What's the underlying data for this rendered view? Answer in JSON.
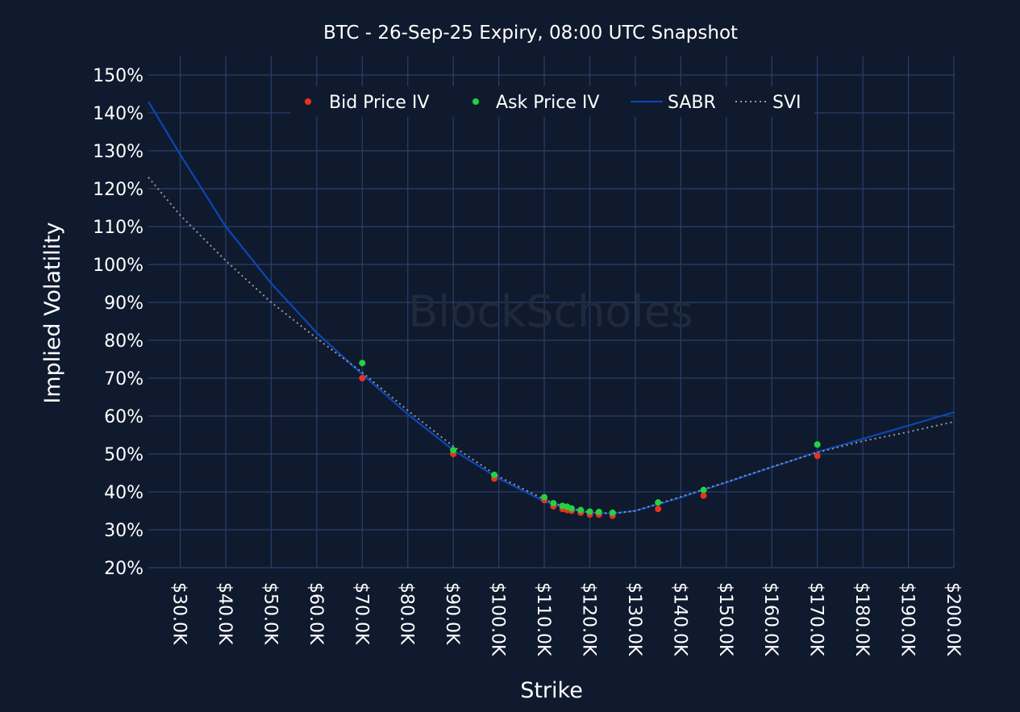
{
  "chart_data": {
    "type": "scatter",
    "title": "BTC - 26-Sep-25 Expiry, 08:00 UTC Snapshot",
    "xlabel": "Strike",
    "ylabel": "Implied Volatility",
    "watermark": "BlockScholes",
    "xlim": [
      23000,
      200000
    ],
    "ylim": [
      20,
      150
    ],
    "x_ticks": [
      30000,
      40000,
      50000,
      60000,
      70000,
      80000,
      90000,
      100000,
      110000,
      120000,
      130000,
      140000,
      150000,
      160000,
      170000,
      180000,
      190000,
      200000
    ],
    "x_tick_labels": [
      "$30.0K",
      "$40.0K",
      "$50.0K",
      "$60.0K",
      "$70.0K",
      "$80.0K",
      "$90.0K",
      "$100.0K",
      "$110.0K",
      "$120.0K",
      "$130.0K",
      "$140.0K",
      "$150.0K",
      "$160.0K",
      "$170.0K",
      "$180.0K",
      "$190.0K",
      "$200.0K"
    ],
    "y_ticks": [
      20,
      30,
      40,
      50,
      60,
      70,
      80,
      90,
      100,
      110,
      120,
      130,
      140,
      150
    ],
    "y_tick_labels": [
      "20%",
      "30%",
      "40%",
      "50%",
      "60%",
      "70%",
      "80%",
      "90%",
      "100%",
      "110%",
      "120%",
      "130%",
      "140%",
      "150%"
    ],
    "grid": true,
    "legend_position": "top",
    "series": [
      {
        "name": "Bid Price IV",
        "kind": "markers",
        "color": "#e8321e",
        "x": [
          70000,
          90000,
          99000,
          110000,
          112000,
          114000,
          115000,
          116000,
          118000,
          120000,
          122000,
          125000,
          135000,
          145000,
          170000
        ],
        "y": [
          70,
          50,
          43.5,
          37.8,
          36.2,
          35.5,
          35.2,
          35,
          34.5,
          34,
          34,
          33.7,
          35.5,
          39,
          49.5
        ]
      },
      {
        "name": "Ask Price IV",
        "kind": "markers",
        "color": "#22d33f",
        "x": [
          70000,
          90000,
          99000,
          110000,
          112000,
          114000,
          115000,
          116000,
          118000,
          120000,
          122000,
          125000,
          135000,
          145000,
          170000
        ],
        "y": [
          74,
          51,
          44.5,
          38.6,
          37,
          36.3,
          36.1,
          35.6,
          35.2,
          34.8,
          34.7,
          34.5,
          37.2,
          40.5,
          52.5
        ]
      },
      {
        "name": "SABR",
        "kind": "line",
        "color": "#0b47b5",
        "x": [
          23000,
          30000,
          40000,
          50000,
          60000,
          70000,
          80000,
          90000,
          100000,
          110000,
          115000,
          120000,
          125000,
          130000,
          140000,
          150000,
          160000,
          170000,
          180000,
          190000,
          200000
        ],
        "y": [
          143,
          129,
          110,
          95,
          82,
          71,
          60.5,
          51,
          43.5,
          37.5,
          35.5,
          34.5,
          34.3,
          35,
          38.5,
          42.5,
          46.5,
          50.5,
          54,
          57.5,
          61
        ]
      },
      {
        "name": "SVI",
        "kind": "dotted",
        "color": "#9a9a9a",
        "x": [
          23000,
          30000,
          40000,
          50000,
          60000,
          70000,
          80000,
          90000,
          100000,
          110000,
          115000,
          120000,
          125000,
          130000,
          140000,
          150000,
          160000,
          170000,
          180000,
          190000,
          200000
        ],
        "y": [
          123,
          113,
          101,
          90,
          80.5,
          71.5,
          61.5,
          52,
          44,
          38,
          35.8,
          34.6,
          34.3,
          35,
          38.7,
          42.6,
          46.6,
          50.4,
          53.4,
          55.8,
          58.5
        ]
      }
    ]
  }
}
